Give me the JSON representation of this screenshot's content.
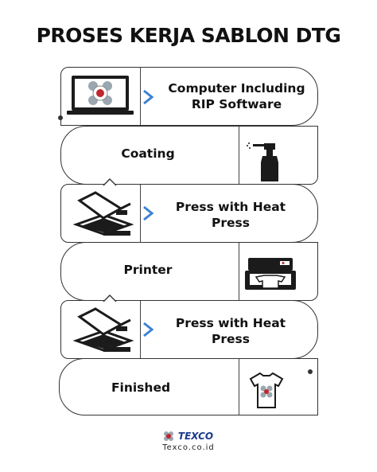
{
  "header": {
    "title": "PROSES KERJA SABLON DTG"
  },
  "steps": [
    {
      "label": "Computer Including RIP Software",
      "icon": "computer-monitor-icon"
    },
    {
      "label": "Coating",
      "icon": "spray-bottle-icon"
    },
    {
      "label": "Press with Heat Press",
      "icon": "heat-press-icon"
    },
    {
      "label": "Printer",
      "icon": "dtg-printer-icon"
    },
    {
      "label": "Press with Heat Press",
      "icon": "heat-press-icon"
    },
    {
      "label": "Finished",
      "icon": "printed-tshirt-icon"
    }
  ],
  "footer": {
    "brand": "TEXCO",
    "website": "Texco.co.id"
  },
  "colors": {
    "accent": "#3b82d4",
    "brand": "#1a3b8c",
    "logo_red": "#c0262d"
  }
}
